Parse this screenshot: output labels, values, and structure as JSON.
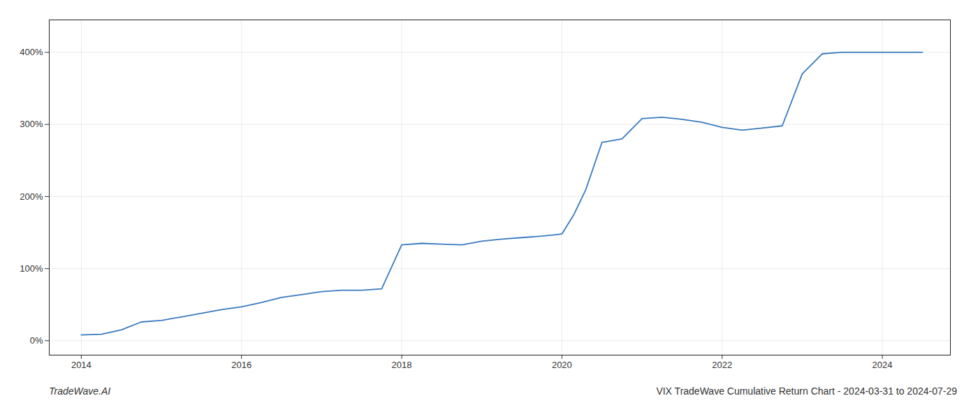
{
  "chart_data": {
    "type": "line",
    "title": "VIX TradeWave Cumulative Return Chart - 2024-03-31 to 2024-07-29",
    "annotations": [
      "TradeWave.AI"
    ],
    "color": "#3a7abf",
    "x": [
      2014.0,
      2014.25,
      2014.5,
      2014.75,
      2015.0,
      2015.25,
      2015.5,
      2015.75,
      2016.0,
      2016.25,
      2016.5,
      2016.75,
      2017.0,
      2017.25,
      2017.5,
      2017.75,
      2018.0,
      2018.25,
      2018.5,
      2018.75,
      2019.0,
      2019.25,
      2019.5,
      2019.75,
      2020.0,
      2020.15,
      2020.3,
      2020.5,
      2020.75,
      2021.0,
      2021.25,
      2021.5,
      2021.75,
      2022.0,
      2022.25,
      2022.5,
      2022.75,
      2023.0,
      2023.25,
      2023.5,
      2023.75,
      2024.0,
      2024.25,
      2024.5
    ],
    "values": [
      8,
      9,
      15,
      26,
      28,
      33,
      38,
      43,
      47,
      53,
      60,
      64,
      68,
      70,
      70,
      72,
      133,
      135,
      134,
      133,
      138,
      141,
      143,
      145,
      148,
      175,
      210,
      275,
      280,
      308,
      310,
      307,
      303,
      296,
      292,
      295,
      298,
      370,
      398,
      400,
      400,
      400,
      400,
      400
    ],
    "xlim": [
      2013.6,
      2024.85
    ],
    "xticks": [
      2014,
      2016,
      2018,
      2020,
      2022,
      2024
    ],
    "ylim": [
      -20,
      445
    ],
    "yticks": [
      {
        "value": 0,
        "label": "0%"
      },
      {
        "value": 100,
        "label": "100%"
      },
      {
        "value": 200,
        "label": "200%"
      },
      {
        "value": 300,
        "label": "300%"
      },
      {
        "value": 400,
        "label": "400%"
      }
    ],
    "grid": true
  }
}
